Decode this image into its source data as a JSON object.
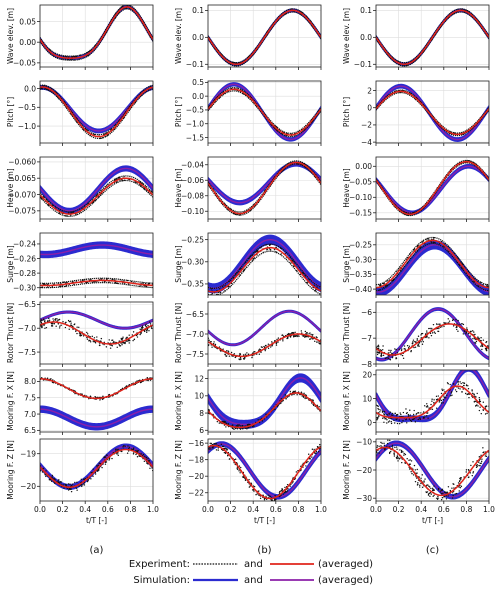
{
  "colors": {
    "experiment": "#111111",
    "experiment_avg": "#e0241b",
    "simulation": "#2b2bd0",
    "simulation_avg": "#8b1fa8",
    "grid": "#dddddd",
    "axis": "#222222"
  },
  "legend": {
    "experiment_label": "Experiment:",
    "simulation_label": "Simulation:",
    "and_text": "and",
    "averaged_text": "(averaged)"
  },
  "chart_data": {
    "type": "line",
    "x_axis": {
      "label": "t/T [-]",
      "range": [
        0.0,
        1.0
      ],
      "ticks": [
        "0.0",
        "0.2",
        "0.4",
        "0.6",
        "0.8",
        "1.0"
      ]
    },
    "grid": true,
    "legend_position": "bottom-center",
    "columns": [
      {
        "caption": "(a)",
        "panels": [
          {
            "ylabel": "Wave elev. [m]",
            "ylim": [
              -0.06,
              0.09
            ],
            "yticks": [
              -0.05,
              0.0,
              0.05
            ],
            "yfmt": 2,
            "exp": {
              "mean": 0.011,
              "amp": 0.062,
              "phase": 0.77,
              "h2": 0.2,
              "thick": 0.005
            },
            "sim": {
              "mean": 0.011,
              "amp": 0.062,
              "phase": 0.77,
              "h2": 0.2,
              "thick": 0.002
            },
            "exp_noise": 0.0
          },
          {
            "ylabel": "Pitch [°]",
            "ylim": [
              -1.45,
              0.2
            ],
            "yticks": [
              -1.0,
              -0.5,
              0.0
            ],
            "yfmt": 1,
            "exp": {
              "mean": -0.62,
              "amp": 0.66,
              "phase": 0.02,
              "h2": 0.0,
              "thick": 0.05
            },
            "sim": {
              "mean": -0.55,
              "amp": 0.58,
              "phase": 0.02,
              "h2": 0.0,
              "thick": 0.035
            },
            "exp_noise": 0.0
          },
          {
            "ylabel": "Heave [m]",
            "ylim": [
              -0.0775,
              -0.0585
            ],
            "yticks": [
              -0.075,
              -0.07,
              -0.065,
              -0.06
            ],
            "yfmt": 3,
            "exp": {
              "mean": -0.0705,
              "amp": 0.0055,
              "phase": 0.76,
              "h2": 0.0,
              "thick": 0.0007
            },
            "sim": {
              "mean": -0.0685,
              "amp": 0.0065,
              "phase": 0.76,
              "h2": 0.0,
              "thick": 0.0006
            },
            "exp_noise": 0.0
          },
          {
            "ylabel": "Surge [m]",
            "ylim": [
              -0.31,
              -0.225
            ],
            "yticks": [
              -0.3,
              -0.28,
              -0.26,
              -0.24
            ],
            "yfmt": 2,
            "exp": {
              "mean": -0.2935,
              "amp": 0.0035,
              "phase": 0.55,
              "h2": 0.0,
              "thick": 0.003
            },
            "sim": {
              "mean": -0.248,
              "amp": 0.0065,
              "phase": 0.55,
              "h2": 0.0,
              "thick": 0.0035
            },
            "exp_noise": 0.0
          },
          {
            "ylabel": "Rotor Thrust [N]",
            "ylim": [
              -7.75,
              -6.45
            ],
            "yticks": [
              -7.5,
              -7.0,
              -6.5
            ],
            "yfmt": 1,
            "exp": {
              "mean": -7.1,
              "amp": 0.23,
              "phase": 0.12,
              "h2": 0.0,
              "thick": 0.0
            },
            "sim": {
              "mean": -6.83,
              "amp": 0.17,
              "phase": 0.25,
              "h2": 0.0,
              "thick": 0.01
            },
            "exp_noise": 0.18
          },
          {
            "ylabel": "Mooring F. X [N]",
            "ylim": [
              6.45,
              8.35
            ],
            "yticks": [
              6.5,
              7.0,
              7.5,
              8.0
            ],
            "yfmt": 1,
            "exp": {
              "mean": 7.78,
              "amp": 0.3,
              "phase": 0.0,
              "h2": 0.0,
              "thick": 0.12
            },
            "sim": {
              "mean": 6.88,
              "amp": 0.27,
              "phase": 0.0,
              "h2": 0.0,
              "thick": 0.08
            },
            "exp_noise": 0.06
          },
          {
            "ylabel": "Mooring F. Z [N]",
            "ylim": [
              -20.45,
              -18.55
            ],
            "yticks": [
              -20,
              -19
            ],
            "yfmt": 0,
            "exp": {
              "mean": -19.45,
              "amp": 0.58,
              "phase": 0.76,
              "h2": 0.0,
              "thick": 0.0
            },
            "sim": {
              "mean": -19.4,
              "amp": 0.62,
              "phase": 0.76,
              "h2": 0.0,
              "thick": 0.06
            },
            "exp_noise": 0.16
          }
        ]
      },
      {
        "caption": "(b)",
        "panels": [
          {
            "ylabel": "Wave elev. [m]",
            "ylim": [
              -0.11,
              0.12
            ],
            "yticks": [
              -0.1,
              0.0,
              0.1
            ],
            "yfmt": 1,
            "exp": {
              "mean": 0.0,
              "amp": 0.1,
              "phase": 0.75,
              "h2": 0.0,
              "thick": 0.006
            },
            "sim": {
              "mean": 0.0,
              "amp": 0.1,
              "phase": 0.75,
              "h2": 0.0,
              "thick": 0.003
            },
            "exp_noise": 0.0
          },
          {
            "ylabel": "Pitch [°]",
            "ylim": [
              -1.7,
              0.55
            ],
            "yticks": [
              -1.5,
              -1.0,
              -0.5,
              0.0,
              0.5
            ],
            "yfmt": 1,
            "exp": {
              "mean": -0.58,
              "amp": 0.83,
              "phase": 0.23,
              "h2": 0.0,
              "thick": 0.06
            },
            "sim": {
              "mean": -0.57,
              "amp": 1.0,
              "phase": 0.23,
              "h2": 0.0,
              "thick": 0.04
            },
            "exp_noise": 0.0
          },
          {
            "ylabel": "Heave [m]",
            "ylim": [
              -0.11,
              -0.03
            ],
            "yticks": [
              -0.1,
              -0.08,
              -0.06,
              -0.04
            ],
            "yfmt": 2,
            "exp": {
              "mean": -0.07,
              "amp": 0.033,
              "phase": 0.78,
              "h2": 0.0,
              "thick": 0.002
            },
            "sim": {
              "mean": -0.064,
              "amp": 0.025,
              "phase": 0.78,
              "h2": 0.0,
              "thick": 0.002
            },
            "exp_noise": 0.0
          },
          {
            "ylabel": "Surge [m]",
            "ylim": [
              -0.375,
              -0.235
            ],
            "yticks": [
              -0.35,
              -0.3,
              -0.25
            ],
            "yfmt": 2,
            "exp": {
              "mean": -0.318,
              "amp": 0.05,
              "phase": 0.55,
              "h2": 0.0,
              "thick": 0.008
            },
            "sim": {
              "mean": -0.305,
              "amp": 0.055,
              "phase": 0.55,
              "h2": 0.0,
              "thick": 0.009
            },
            "exp_noise": 0.0
          },
          {
            "ylabel": "Rotor Thrust [N]",
            "ylim": [
              -7.75,
              -6.2
            ],
            "yticks": [
              -7.5,
              -7.0,
              -6.5
            ],
            "yfmt": 1,
            "exp": {
              "mean": -7.28,
              "amp": 0.28,
              "phase": 0.8,
              "h2": 0.0,
              "thick": 0.0
            },
            "sim": {
              "mean": -6.85,
              "amp": 0.42,
              "phase": 0.72,
              "h2": 0.0,
              "thick": 0.01
            },
            "exp_noise": 0.13
          },
          {
            "ylabel": "Mooring F. X [N]",
            "ylim": [
              5.8,
              13.0
            ],
            "yticks": [
              6,
              8,
              10,
              12
            ],
            "yfmt": 0,
            "exp": {
              "mean": 8.1,
              "amp": 2.0,
              "phase": 0.78,
              "h2": 0.12,
              "thick": 0.25
            },
            "sim": {
              "mean": 8.9,
              "amp": 2.7,
              "phase": 0.82,
              "h2": 0.18,
              "thick": 0.4
            },
            "exp_noise": 0.1
          },
          {
            "ylabel": "Mooring F. Z [N]",
            "ylim": [
              -23.0,
              -15.5
            ],
            "yticks": [
              -22,
              -20,
              -18,
              -16
            ],
            "yfmt": 0,
            "exp": {
              "mean": -19.5,
              "amp": 3.2,
              "phase": 0.05,
              "h2": 0.0,
              "thick": 0.1
            },
            "sim": {
              "mean": -19.3,
              "amp": 3.2,
              "phase": 0.12,
              "h2": 0.0,
              "thick": 0.2
            },
            "exp_noise": 0.15
          }
        ]
      },
      {
        "caption": "(c)",
        "panels": [
          {
            "ylabel": "Wave elev. [m]",
            "ylim": [
              -0.11,
              0.12
            ],
            "yticks": [
              -0.1,
              0.0,
              0.1
            ],
            "yfmt": 1,
            "exp": {
              "mean": 0.0,
              "amp": 0.1,
              "phase": 0.75,
              "h2": 0.0,
              "thick": 0.006
            },
            "sim": {
              "mean": 0.0,
              "amp": 0.1,
              "phase": 0.75,
              "h2": 0.0,
              "thick": 0.003
            },
            "exp_noise": 0.0
          },
          {
            "ylabel": "Pitch [°]",
            "ylim": [
              -4.1,
              3.1
            ],
            "yticks": [
              -4,
              -2,
              0,
              2
            ],
            "yfmt": 0,
            "exp": {
              "mean": -0.6,
              "amp": 2.5,
              "phase": 0.22,
              "h2": 0.0,
              "thick": 0.15
            },
            "sim": {
              "mean": -0.6,
              "amp": 3.1,
              "phase": 0.22,
              "h2": 0.0,
              "thick": 0.15
            },
            "exp_noise": 0.0
          },
          {
            "ylabel": "Heave [m]",
            "ylim": [
              -0.17,
              0.03
            ],
            "yticks": [
              -0.15,
              -0.1,
              -0.05,
              0.0
            ],
            "yfmt": 2,
            "exp": {
              "mean": -0.07,
              "amp": 0.085,
              "phase": 0.8,
              "h2": 0.0,
              "thick": 0.004
            },
            "sim": {
              "mean": -0.075,
              "amp": 0.075,
              "phase": 0.82,
              "h2": 0.0,
              "thick": 0.004
            },
            "exp_noise": 0.0
          },
          {
            "ylabel": "Surge [m]",
            "ylim": [
              -0.42,
              -0.21
            ],
            "yticks": [
              -0.4,
              -0.35,
              -0.3,
              -0.25
            ],
            "yfmt": 2,
            "exp": {
              "mean": -0.315,
              "amp": 0.08,
              "phase": 0.5,
              "h2": 0.0,
              "thick": 0.01
            },
            "sim": {
              "mean": -0.33,
              "amp": 0.08,
              "phase": 0.52,
              "h2": 0.0,
              "thick": 0.012
            },
            "exp_noise": 0.0
          },
          {
            "ylabel": "Rotor Thrust [N]",
            "ylim": [
              -8.0,
              -5.6
            ],
            "yticks": [
              -8,
              -7,
              -6
            ],
            "yfmt": 0,
            "exp": {
              "mean": -7.05,
              "amp": 0.6,
              "phase": 0.65,
              "h2": 0.0,
              "thick": 0.0
            },
            "sim": {
              "mean": -6.85,
              "amp": 0.98,
              "phase": 0.55,
              "h2": 0.0,
              "thick": 0.03
            },
            "exp_noise": 0.22
          },
          {
            "ylabel": "Mooring F. X [N]",
            "ylim": [
              -4.0,
              22.0
            ],
            "yticks": [
              0,
              10,
              20
            ],
            "yfmt": 0,
            "exp": {
              "mean": 7.0,
              "amp": 6.6,
              "phase": 0.72,
              "h2": 0.25,
              "thick": 0.6
            },
            "sim": {
              "mean": 9.0,
              "amp": 10.5,
              "phase": 0.82,
              "h2": 0.3,
              "thick": 0.9
            },
            "exp_noise": 0.3
          },
          {
            "ylabel": "Mooring F. Z [N]",
            "ylim": [
              -31.0,
              -9.0
            ],
            "yticks": [
              -30,
              -20,
              -10
            ],
            "yfmt": 0,
            "exp": {
              "mean": -20.5,
              "amp": 8.5,
              "phase": 0.08,
              "h2": 0.0,
              "thick": 0.4
            },
            "sim": {
              "mean": -20.0,
              "amp": 9.5,
              "phase": 0.18,
              "h2": 0.0,
              "thick": 0.6
            },
            "exp_noise": 0.3
          }
        ]
      }
    ]
  }
}
